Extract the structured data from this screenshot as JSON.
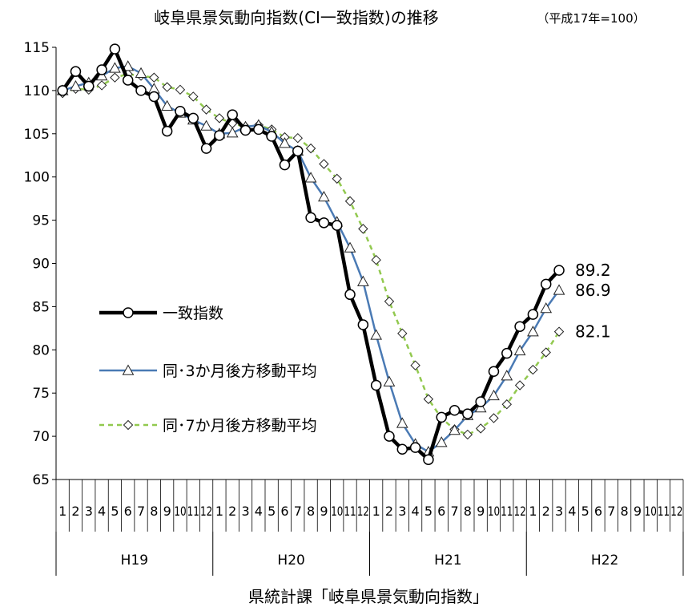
{
  "chart_data": {
    "type": "line",
    "title": "岐阜県景気動向指数(CI一致指数)の推移",
    "subtitle": "（平成17年=100）",
    "source": "県統計課「岐阜県景気動向指数」",
    "ylim": [
      65,
      115
    ],
    "y_ticks": [
      "65",
      "70",
      "75",
      "80",
      "85",
      "90",
      "95",
      "100",
      "105",
      "110",
      "115"
    ],
    "month_labels": [
      "1",
      "2",
      "3",
      "4",
      "5",
      "6",
      "7",
      "8",
      "9",
      "10",
      "11",
      "12"
    ],
    "years": [
      "H19",
      "H20",
      "H21",
      "H22"
    ],
    "grid": false,
    "legend_position": "middle-left",
    "series": [
      {
        "name": "一致指数",
        "color": "#000000",
        "marker": "circle",
        "end_label": "89.2",
        "values": [
          110.0,
          112.2,
          110.5,
          112.4,
          114.8,
          111.2,
          110.0,
          109.3,
          105.3,
          107.6,
          106.8,
          103.3,
          104.8,
          107.2,
          105.4,
          105.5,
          104.7,
          101.4,
          103.0,
          95.3,
          94.7,
          94.4,
          86.4,
          82.9,
          75.9,
          70.0,
          68.5,
          68.7,
          67.3,
          72.2,
          73.0,
          72.6,
          74.0,
          77.5,
          79.6,
          82.7,
          84.1,
          87.6,
          89.2
        ]
      },
      {
        "name": "同･3か月後方移動平均",
        "color": "#4a7ab4",
        "marker": "triangle",
        "end_label": "86.9",
        "values": [
          110.0,
          110.5,
          110.9,
          111.7,
          112.6,
          112.8,
          112.0,
          110.2,
          108.2,
          107.4,
          106.6,
          105.9,
          105.0,
          105.1,
          105.8,
          106.0,
          105.2,
          103.9,
          103.0,
          99.9,
          97.7,
          94.8,
          91.8,
          87.9,
          81.7,
          76.3,
          71.5,
          69.1,
          68.2,
          69.3,
          70.7,
          72.4,
          73.3,
          74.7,
          77.0,
          79.9,
          82.1,
          84.8,
          86.9
        ]
      },
      {
        "name": "同･7か月後方移動平均",
        "color": "#92c94f",
        "marker": "diamond",
        "end_label": "82.1",
        "values": [
          109.7,
          110.2,
          110.1,
          110.6,
          111.5,
          111.9,
          111.7,
          111.5,
          110.4,
          110.1,
          109.3,
          107.8,
          106.8,
          106.2,
          105.8,
          106.0,
          105.5,
          104.6,
          104.5,
          103.3,
          101.5,
          99.8,
          97.2,
          94.0,
          90.4,
          85.6,
          81.9,
          78.2,
          74.3,
          72.1,
          70.8,
          70.2,
          70.9,
          72.1,
          73.7,
          75.9,
          77.7,
          79.7,
          82.1
        ]
      }
    ]
  }
}
